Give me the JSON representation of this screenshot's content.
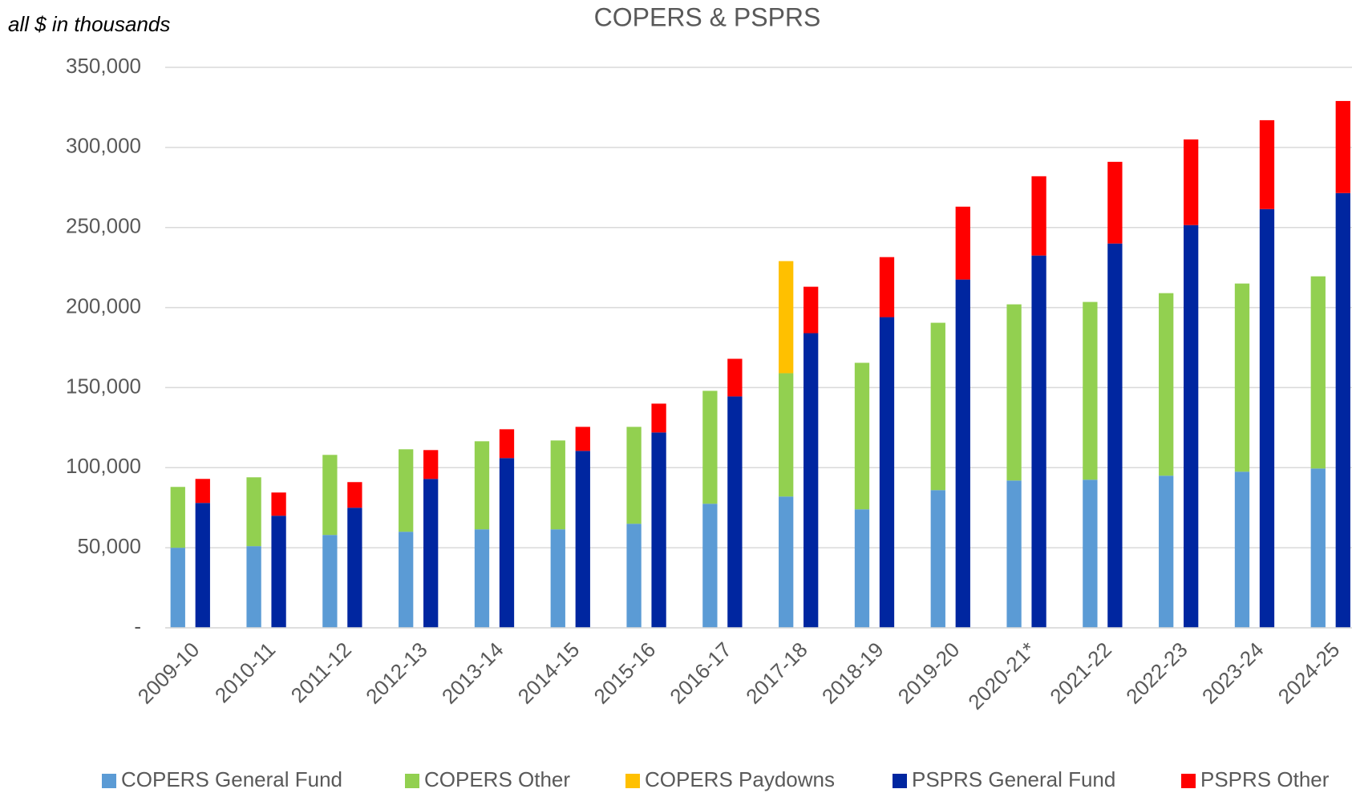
{
  "chart_data": {
    "type": "grouped-stacked-bar",
    "title": "COPERS & PSPRS",
    "annotation": "all $ in thousands",
    "categories": [
      "2009-10",
      "2010-11",
      "2011-12",
      "2012-13",
      "2013-14",
      "2014-15",
      "2015-16",
      "2016-17",
      "2017-18",
      "2018-19",
      "2019-20",
      "2020-21*",
      "2021-22",
      "2022-23",
      "2023-24",
      "2024-25"
    ],
    "groups": [
      {
        "series": [
          {
            "name": "COPERS General Fund",
            "color": "#5b9bd5",
            "values": [
              50000,
              51000,
              58000,
              60000,
              61500,
              61500,
              65000,
              77500,
              82000,
              74000,
              86000,
              92000,
              92500,
              95000,
              97500,
              99500
            ]
          },
          {
            "name": "COPERS Other",
            "color": "#92d050",
            "values": [
              38000,
              43000,
              50000,
              51500,
              55000,
              55500,
              60500,
              70500,
              77000,
              91500,
              104500,
              110000,
              111000,
              114000,
              117500,
              120000
            ]
          },
          {
            "name": "COPERS Paydowns",
            "color": "#ffc000",
            "values": [
              null,
              null,
              null,
              null,
              null,
              null,
              null,
              null,
              70000,
              null,
              null,
              null,
              null,
              null,
              null,
              null
            ]
          }
        ]
      },
      {
        "series": [
          {
            "name": "PSPRS General Fund",
            "color": "#0026a0",
            "values": [
              78000,
              70000,
              75000,
              93000,
              106000,
              110500,
              122000,
              144500,
              184000,
              194000,
              217500,
              232500,
              240000,
              251500,
              261500,
              271500
            ]
          },
          {
            "name": "PSPRS Other",
            "color": "#ff0000",
            "values": [
              15000,
              14500,
              16000,
              18000,
              18000,
              15000,
              18000,
              23500,
              29000,
              37500,
              45500,
              49500,
              51000,
              53500,
              55500,
              57500
            ]
          }
        ]
      }
    ],
    "ylim": [
      0,
      350000
    ],
    "yticks": [
      {
        "value": 0,
        "label": "-"
      },
      {
        "value": 50000,
        "label": "50,000"
      },
      {
        "value": 100000,
        "label": "100,000"
      },
      {
        "value": 150000,
        "label": "150,000"
      },
      {
        "value": 200000,
        "label": "200,000"
      },
      {
        "value": 250000,
        "label": "250,000"
      },
      {
        "value": 300000,
        "label": "300,000"
      },
      {
        "value": 350000,
        "label": "350,000"
      }
    ],
    "grid": true,
    "legend": "bottom"
  }
}
